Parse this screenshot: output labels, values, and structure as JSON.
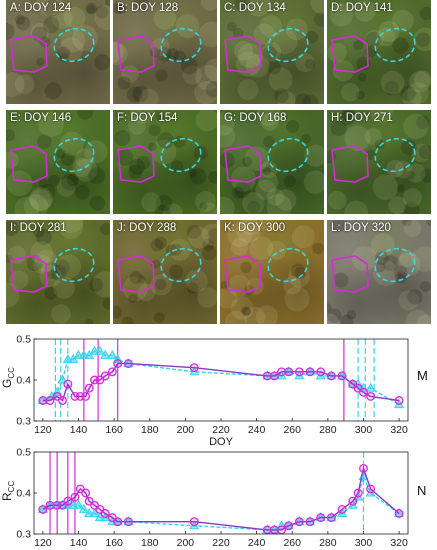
{
  "panels": [
    {
      "label": "A: DOY 124",
      "tone": "#6f6a48"
    },
    {
      "label": "B: DOY 128",
      "tone": "#6e6a47"
    },
    {
      "label": "C: DOY 134",
      "tone": "#5a6a35"
    },
    {
      "label": "D: DOY 141",
      "tone": "#506a2d"
    },
    {
      "label": "E: DOY 146",
      "tone": "#4b6d27"
    },
    {
      "label": "F: DOY 154",
      "tone": "#4a6b26"
    },
    {
      "label": "G: DOY 168",
      "tone": "#456628"
    },
    {
      "label": "H: DOY 271",
      "tone": "#49672a"
    },
    {
      "label": "I: DOY 281",
      "tone": "#5e6a2c"
    },
    {
      "label": "J: DOY 288",
      "tone": "#6e6630"
    },
    {
      "label": "K: DOY 300",
      "tone": "#8a6e2c"
    },
    {
      "label": "L: DOY 320",
      "tone": "#7a776a"
    }
  ],
  "colors": {
    "magenta": "#d62bd9",
    "cyan": "#36d6e6",
    "purple": "#8a36c8"
  },
  "chart_data": [
    {
      "type": "line",
      "panel_letter": "M",
      "xlabel": "DOY",
      "ylabel": "G",
      "ylabel_sub": "CC",
      "xlim": [
        115,
        325
      ],
      "ylim": [
        0.3,
        0.5
      ],
      "xticks": [
        120,
        140,
        160,
        180,
        200,
        220,
        240,
        260,
        280,
        300,
        320
      ],
      "yticks": [
        0.3,
        0.4,
        0.5
      ],
      "vlines_magenta": [
        143,
        151,
        162,
        289
      ],
      "vlines_cyan": [
        127,
        130,
        134,
        297,
        301,
        306
      ],
      "series": [
        {
          "color": "cyan",
          "marker": "triangle",
          "x": [
            120,
            125,
            128,
            131,
            134,
            137,
            140,
            143,
            146,
            149,
            152,
            155,
            159,
            162,
            168,
            205,
            246,
            250,
            254,
            258,
            264,
            270,
            276,
            282,
            288,
            294,
            297,
            300,
            304,
            320
          ],
          "y": [
            0.35,
            0.36,
            0.37,
            0.4,
            0.45,
            0.45,
            0.46,
            0.46,
            0.46,
            0.47,
            0.47,
            0.46,
            0.46,
            0.45,
            0.44,
            0.42,
            0.41,
            0.41,
            0.41,
            0.42,
            0.41,
            0.42,
            0.41,
            0.41,
            0.41,
            0.39,
            0.39,
            0.38,
            0.38,
            0.34
          ]
        },
        {
          "color": "magenta",
          "marker": "circle",
          "x": [
            120,
            124,
            128,
            131,
            134,
            138,
            141,
            144,
            146,
            149,
            152,
            155,
            159,
            162,
            168,
            205,
            246,
            250,
            254,
            258,
            264,
            270,
            276,
            282,
            288,
            294,
            297,
            300,
            304,
            320
          ],
          "y": [
            0.35,
            0.35,
            0.36,
            0.35,
            0.39,
            0.36,
            0.36,
            0.36,
            0.38,
            0.4,
            0.4,
            0.41,
            0.42,
            0.44,
            0.44,
            0.43,
            0.41,
            0.41,
            0.42,
            0.42,
            0.42,
            0.42,
            0.42,
            0.41,
            0.41,
            0.39,
            0.38,
            0.37,
            0.36,
            0.35
          ]
        }
      ]
    },
    {
      "type": "line",
      "panel_letter": "N",
      "xlabel": "",
      "ylabel": "R",
      "ylabel_sub": "CC",
      "xlim": [
        115,
        325
      ],
      "ylim": [
        0.3,
        0.5
      ],
      "xticks": [
        120,
        140,
        160,
        180,
        200,
        220,
        240,
        260,
        280,
        300,
        320
      ],
      "yticks": [
        0.3,
        0.4,
        0.5
      ],
      "vlines_magenta": [
        124,
        128,
        134,
        138
      ],
      "vlines_cyan": [
        300
      ],
      "series": [
        {
          "color": "cyan",
          "marker": "triangle",
          "x": [
            120,
            124,
            128,
            131,
            134,
            137,
            140,
            143,
            146,
            149,
            152,
            155,
            159,
            162,
            168,
            205,
            246,
            250,
            254,
            258,
            264,
            270,
            276,
            282,
            288,
            294,
            297,
            300,
            304,
            320
          ],
          "y": [
            0.36,
            0.37,
            0.37,
            0.37,
            0.37,
            0.37,
            0.37,
            0.36,
            0.35,
            0.35,
            0.34,
            0.34,
            0.33,
            0.33,
            0.33,
            0.32,
            0.31,
            0.31,
            0.32,
            0.32,
            0.33,
            0.33,
            0.34,
            0.34,
            0.35,
            0.37,
            0.39,
            0.44,
            0.4,
            0.35
          ]
        },
        {
          "color": "magenta",
          "marker": "circle",
          "x": [
            120,
            124,
            128,
            131,
            134,
            138,
            141,
            144,
            146,
            149,
            152,
            155,
            159,
            162,
            168,
            205,
            246,
            250,
            254,
            258,
            264,
            270,
            276,
            282,
            288,
            294,
            297,
            300,
            304,
            320
          ],
          "y": [
            0.36,
            0.37,
            0.37,
            0.37,
            0.38,
            0.39,
            0.41,
            0.4,
            0.38,
            0.37,
            0.36,
            0.35,
            0.34,
            0.33,
            0.33,
            0.33,
            0.31,
            0.31,
            0.31,
            0.32,
            0.33,
            0.33,
            0.34,
            0.34,
            0.36,
            0.38,
            0.4,
            0.46,
            0.41,
            0.35
          ]
        }
      ]
    }
  ]
}
